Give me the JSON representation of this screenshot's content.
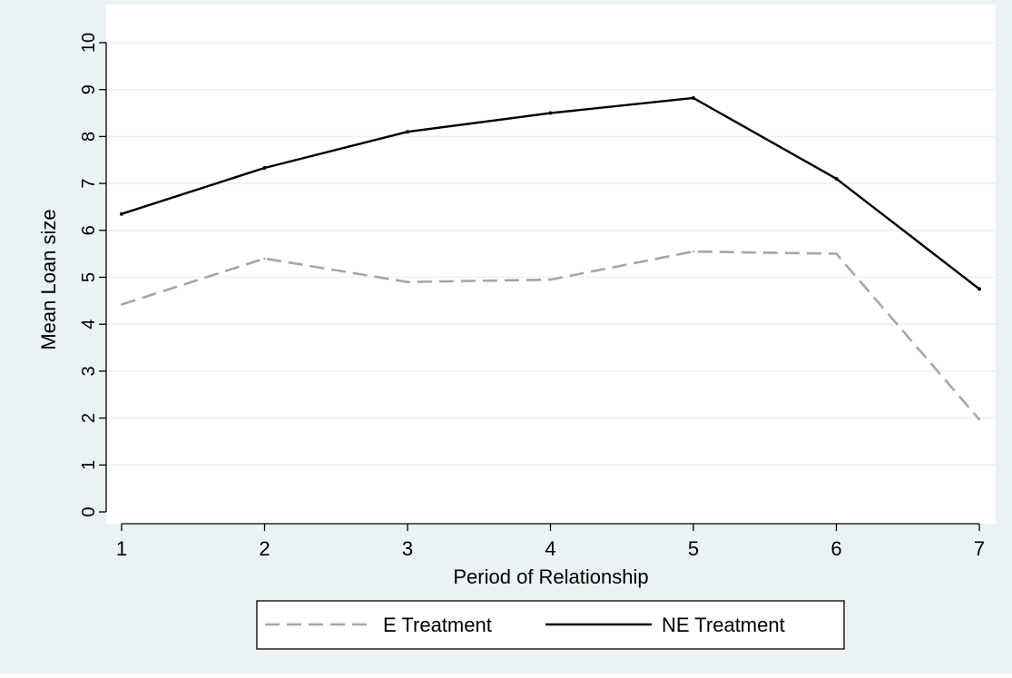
{
  "chart_data": {
    "type": "line",
    "title": "",
    "xlabel": "Period of Relationship",
    "ylabel": "Mean Loan size",
    "x": [
      1,
      2,
      3,
      4,
      5,
      6,
      7
    ],
    "xlim": [
      1,
      7
    ],
    "ylim": [
      0,
      10
    ],
    "xticks": [
      1,
      2,
      3,
      4,
      5,
      6,
      7
    ],
    "yticks": [
      0,
      1,
      2,
      3,
      4,
      5,
      6,
      7,
      8,
      9,
      10
    ],
    "grid": true,
    "legend_position": "bottom",
    "series": [
      {
        "name": "E Treatment",
        "values": [
          4.42,
          5.4,
          4.9,
          4.95,
          5.55,
          5.5,
          1.97
        ],
        "color": "#a6a6a6",
        "style": "dashed"
      },
      {
        "name": "NE Treatment",
        "values": [
          6.35,
          7.33,
          8.1,
          8.5,
          8.82,
          7.1,
          4.75
        ],
        "color": "#000000",
        "style": "solid"
      }
    ],
    "colors": {
      "outer_background": "#eaf2f3",
      "plot_background": "#ffffff",
      "grid": "#eaf2f3"
    }
  }
}
